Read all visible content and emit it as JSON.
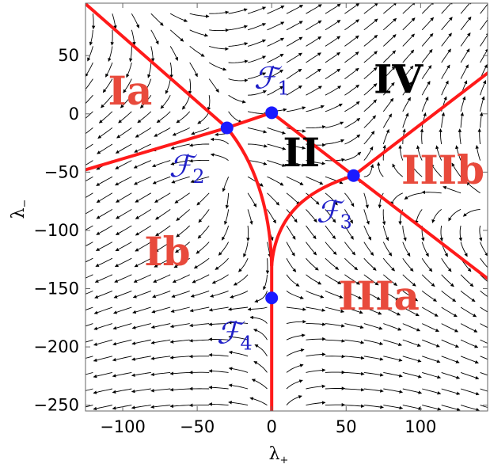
{
  "axes": {
    "xlabel": "λ",
    "xlabel_sub": "+",
    "ylabel": "λ",
    "ylabel_sub": "−",
    "xlim": [
      -125,
      145
    ],
    "ylim": [
      -255,
      95
    ],
    "xticks": [
      {
        "value": -100,
        "label": "−100"
      },
      {
        "value": -50,
        "label": "−50"
      },
      {
        "value": 0,
        "label": "0"
      },
      {
        "value": 50,
        "label": "50"
      },
      {
        "value": 100,
        "label": "100"
      }
    ],
    "yticks": [
      {
        "value": 50,
        "label": "50"
      },
      {
        "value": 0,
        "label": "0"
      },
      {
        "value": -50,
        "label": "−50"
      },
      {
        "value": -100,
        "label": "−100"
      },
      {
        "value": -150,
        "label": "−150"
      },
      {
        "value": -200,
        "label": "−200"
      },
      {
        "value": -250,
        "label": "−250"
      }
    ]
  },
  "colors": {
    "boundary": "#ff1a1a",
    "fixed_point": "#1a1aff",
    "fixed_point_label": "#2020c8",
    "region_red": "#e84a3c",
    "region_black": "#000000"
  },
  "regions": [
    {
      "id": "Ia",
      "label": "Ia",
      "x": -95,
      "y": 8,
      "color": "red"
    },
    {
      "id": "IV",
      "label": "IV",
      "x": 85,
      "y": 18,
      "color": "black"
    },
    {
      "id": "II",
      "label": "II",
      "x": 20,
      "y": -45,
      "color": "black"
    },
    {
      "id": "IIIb",
      "label": "IIIb",
      "x": 115,
      "y": -60,
      "color": "red"
    },
    {
      "id": "Ib",
      "label": "Ib",
      "x": -70,
      "y": -130,
      "color": "red"
    },
    {
      "id": "IIIa",
      "label": "IIIa",
      "x": 72,
      "y": -168,
      "color": "red"
    }
  ],
  "fixed_points": [
    {
      "id": "F1",
      "x": 0,
      "y": 1,
      "label": "ℱ",
      "sub": "1",
      "label_x": 0,
      "label_y": 22
    },
    {
      "id": "F2",
      "x": -30,
      "y": -12,
      "label": "ℱ",
      "sub": "2",
      "label_x": -57,
      "label_y": -54
    },
    {
      "id": "F3",
      "x": 55,
      "y": -53,
      "label": "ℱ",
      "sub": "3",
      "label_x": 42,
      "label_y": -93
    },
    {
      "id": "F4",
      "x": 0,
      "y": -158,
      "label": "ℱ",
      "sub": "4",
      "label_x": -25,
      "label_y": -197
    }
  ]
}
